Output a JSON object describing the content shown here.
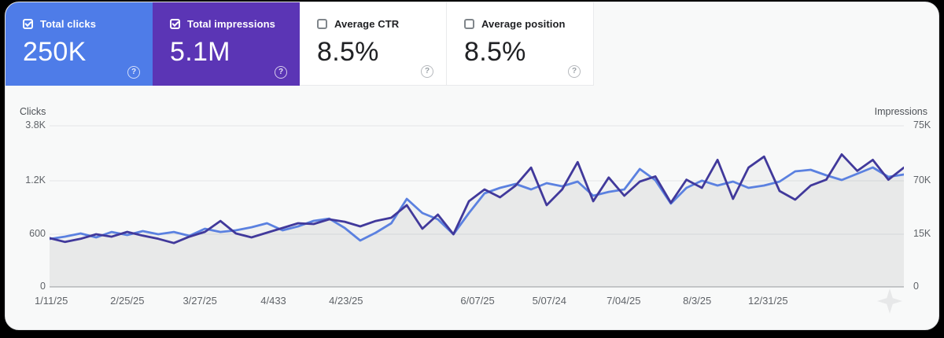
{
  "cards": [
    {
      "label": "Total clicks",
      "value": "250K",
      "checked": true,
      "selected": true,
      "bg": "#4e7ce8",
      "text_color": "#ffffff"
    },
    {
      "label": "Total impressions",
      "value": "5.1M",
      "checked": true,
      "selected": true,
      "bg": "#5b35b5",
      "text_color": "#ffffff"
    },
    {
      "label": "Average CTR",
      "value": "8.5%",
      "checked": false,
      "selected": false,
      "bg": "#ffffff",
      "text_color": "#202124"
    },
    {
      "label": "Average position",
      "value": "8.5%",
      "checked": false,
      "selected": false,
      "bg": "#ffffff",
      "text_color": "#202124"
    }
  ],
  "chart_data": {
    "type": "line",
    "grid": true,
    "legend_position": "none",
    "y_axis_left": {
      "label": "Clicks",
      "ticks": [
        {
          "label": "3.8K",
          "value": 3800,
          "frac": 0
        },
        {
          "label": "1.2K",
          "value": 1200,
          "frac": 0.3415
        },
        {
          "label": "600",
          "value": 600,
          "frac": 0.6732
        },
        {
          "label": "0",
          "value": 0,
          "frac": 1
        }
      ]
    },
    "y_axis_right": {
      "label": "Impressions",
      "ticks": [
        {
          "label": "75K",
          "value": 75000,
          "frac": 0
        },
        {
          "label": "70K",
          "value": 70000,
          "frac": 0.3415
        },
        {
          "label": "15K",
          "value": 15000,
          "frac": 0.6732
        },
        {
          "label": "0",
          "value": 0,
          "frac": 1
        }
      ]
    },
    "x_axis": {
      "ticks": [
        "1/11/25",
        "2/25/25",
        "3/27/25",
        "4/433",
        "4/23/25",
        "6/07/25",
        "5/07/24",
        "7/04/25",
        "8/3/25",
        "12/31/25"
      ],
      "fracs": [
        0.002,
        0.091,
        0.176,
        0.262,
        0.347,
        0.501,
        0.585,
        0.672,
        0.758,
        0.841
      ]
    },
    "series": [
      {
        "name": "Total clicks",
        "axis": "left",
        "color": "#5b81e0",
        "values": [
          546,
          573,
          609,
          564,
          626,
          591,
          635,
          600,
          626,
          582,
          662,
          626,
          644,
          679,
          724,
          644,
          688,
          750,
          776,
          671,
          528,
          618,
          724,
          997,
          838,
          768,
          600,
          838,
          1059,
          1121,
          1165,
          1103,
          1174,
          1138,
          1191,
          1032,
          1076,
          1103,
          1757,
          1227,
          944,
          1121,
          1209,
          1147,
          1191,
          1121,
          1147,
          1191,
          1646,
          1720,
          1460,
          1237,
          1534,
          1831,
          1386,
          1497
        ]
      },
      {
        "name": "Total impressions",
        "axis": "right",
        "color": "#41399b",
        "values": [
          13900,
          12800,
          13700,
          15000,
          14300,
          17400,
          14600,
          13700,
          12500,
          14300,
          17400,
          28700,
          15800,
          14100,
          16600,
          21500,
          26300,
          25500,
          30400,
          27900,
          23100,
          28700,
          32000,
          44900,
          20700,
          35200,
          15000,
          49000,
          61100,
          53000,
          65100,
          71200,
          44900,
          61100,
          71700,
          49000,
          70300,
          54600,
          69200,
          70400,
          47400,
          70100,
          62700,
          71900,
          51400,
          71200,
          72200,
          59500,
          50600,
          65100,
          70100,
          72400,
          70900,
          71900,
          70100,
          71200
        ]
      }
    ]
  },
  "colors": {
    "accent_blue": "#4e7ce8",
    "accent_purple": "#5b35b5",
    "grid_line": "#e3e5e7",
    "axis_line": "#babdc0",
    "tick_text": "#5f6368",
    "area_fill": "#5f6368"
  }
}
